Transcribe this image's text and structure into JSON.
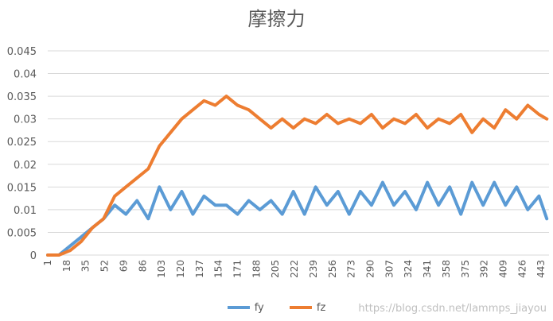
{
  "chart_data": {
    "type": "line",
    "title": "摩擦力",
    "xlabel": "",
    "ylabel": "",
    "x_start": 1,
    "x_end": 450,
    "ylim": [
      0,
      0.045
    ],
    "y_ticks": [
      "0",
      "0.005",
      "0.01",
      "0.015",
      "0.02",
      "0.025",
      "0.03",
      "0.035",
      "0.04",
      "0.045"
    ],
    "x_tick_labels": [
      "1",
      "18",
      "35",
      "52",
      "69",
      "86",
      "103",
      "120",
      "137",
      "154",
      "171",
      "188",
      "205",
      "222",
      "239",
      "256",
      "273",
      "290",
      "307",
      "324",
      "341",
      "358",
      "375",
      "392",
      "409",
      "426",
      "443"
    ],
    "grid": "horizontal",
    "legend_position": "bottom",
    "series": [
      {
        "name": "fy",
        "color": "#5b9bd5",
        "x": [
          1,
          11,
          21,
          31,
          41,
          51,
          61,
          71,
          81,
          91,
          101,
          111,
          121,
          131,
          141,
          151,
          161,
          171,
          181,
          191,
          201,
          211,
          221,
          231,
          241,
          251,
          261,
          271,
          281,
          291,
          301,
          311,
          321,
          331,
          341,
          351,
          361,
          371,
          381,
          391,
          401,
          411,
          421,
          431,
          441,
          448
        ],
        "values": [
          0,
          0,
          0.002,
          0.004,
          0.006,
          0.008,
          0.011,
          0.009,
          0.012,
          0.008,
          0.015,
          0.01,
          0.014,
          0.009,
          0.013,
          0.011,
          0.011,
          0.009,
          0.012,
          0.01,
          0.012,
          0.009,
          0.014,
          0.009,
          0.015,
          0.011,
          0.014,
          0.009,
          0.014,
          0.011,
          0.016,
          0.011,
          0.014,
          0.01,
          0.016,
          0.011,
          0.015,
          0.009,
          0.016,
          0.011,
          0.016,
          0.011,
          0.015,
          0.01,
          0.013,
          0.008
        ]
      },
      {
        "name": "fz",
        "color": "#ed7d31",
        "x": [
          1,
          11,
          21,
          31,
          41,
          51,
          61,
          71,
          81,
          91,
          101,
          111,
          121,
          131,
          141,
          151,
          161,
          171,
          181,
          191,
          201,
          211,
          221,
          231,
          241,
          251,
          261,
          271,
          281,
          291,
          301,
          311,
          321,
          331,
          341,
          351,
          361,
          371,
          381,
          391,
          401,
          411,
          421,
          431,
          441,
          448
        ],
        "values": [
          0,
          0,
          0.001,
          0.003,
          0.006,
          0.008,
          0.013,
          0.015,
          0.017,
          0.019,
          0.024,
          0.027,
          0.03,
          0.032,
          0.034,
          0.033,
          0.035,
          0.033,
          0.032,
          0.03,
          0.028,
          0.03,
          0.028,
          0.03,
          0.029,
          0.031,
          0.029,
          0.03,
          0.029,
          0.031,
          0.028,
          0.03,
          0.029,
          0.031,
          0.028,
          0.03,
          0.029,
          0.031,
          0.027,
          0.03,
          0.028,
          0.032,
          0.03,
          0.033,
          0.031,
          0.03
        ]
      }
    ]
  },
  "watermark": "https://blog.csdn.net/lammps_jiayou"
}
